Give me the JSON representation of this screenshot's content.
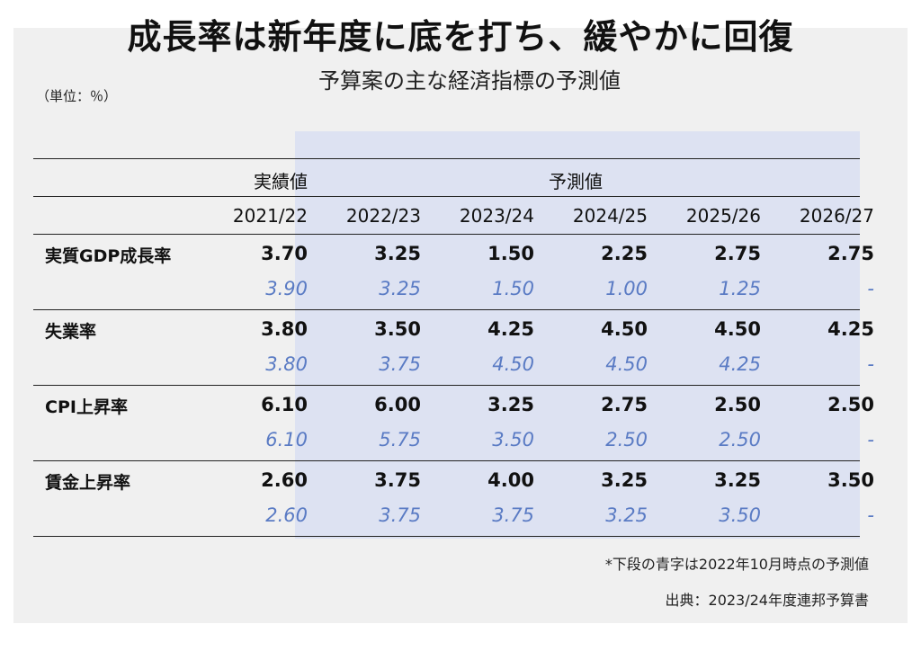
{
  "title": "成長率は新年度に底を打ち、緩やかに回復",
  "subtitle": "予算案の主な経済指標の予測値",
  "unit_label": "（単位：％）",
  "groups": {
    "actual": "実績値",
    "forecast": "予測値"
  },
  "years": [
    "2021/22",
    "2022/23",
    "2023/24",
    "2024/25",
    "2025/26",
    "2026/27"
  ],
  "rows": [
    {
      "label": "実質GDP成長率",
      "values": [
        "3.70",
        "3.25",
        "1.50",
        "2.25",
        "2.75",
        "2.75"
      ],
      "previous": [
        "3.90",
        "3.25",
        "1.50",
        "1.00",
        "1.25",
        "-"
      ]
    },
    {
      "label": "失業率",
      "values": [
        "3.80",
        "3.50",
        "4.25",
        "4.50",
        "4.50",
        "4.25"
      ],
      "previous": [
        "3.80",
        "3.75",
        "4.50",
        "4.50",
        "4.25",
        "-"
      ]
    },
    {
      "label": "CPI上昇率",
      "values": [
        "6.10",
        "6.00",
        "3.25",
        "2.75",
        "2.50",
        "2.50"
      ],
      "previous": [
        "6.10",
        "5.75",
        "3.50",
        "2.50",
        "2.50",
        "-"
      ]
    },
    {
      "label": "賃金上昇率",
      "values": [
        "2.60",
        "3.75",
        "4.00",
        "3.25",
        "3.25",
        "3.50"
      ],
      "previous": [
        "2.60",
        "3.75",
        "3.75",
        "3.25",
        "3.50",
        "-"
      ]
    }
  ],
  "footnote": "*下段の青字は2022年10月時点の予測値",
  "source": "出典：2023/24年度連邦予算書",
  "colors": {
    "previous_text": "#5a7bc4",
    "forecast_bg": "#dde2f2",
    "panel_bg": "#f0f0f0"
  }
}
